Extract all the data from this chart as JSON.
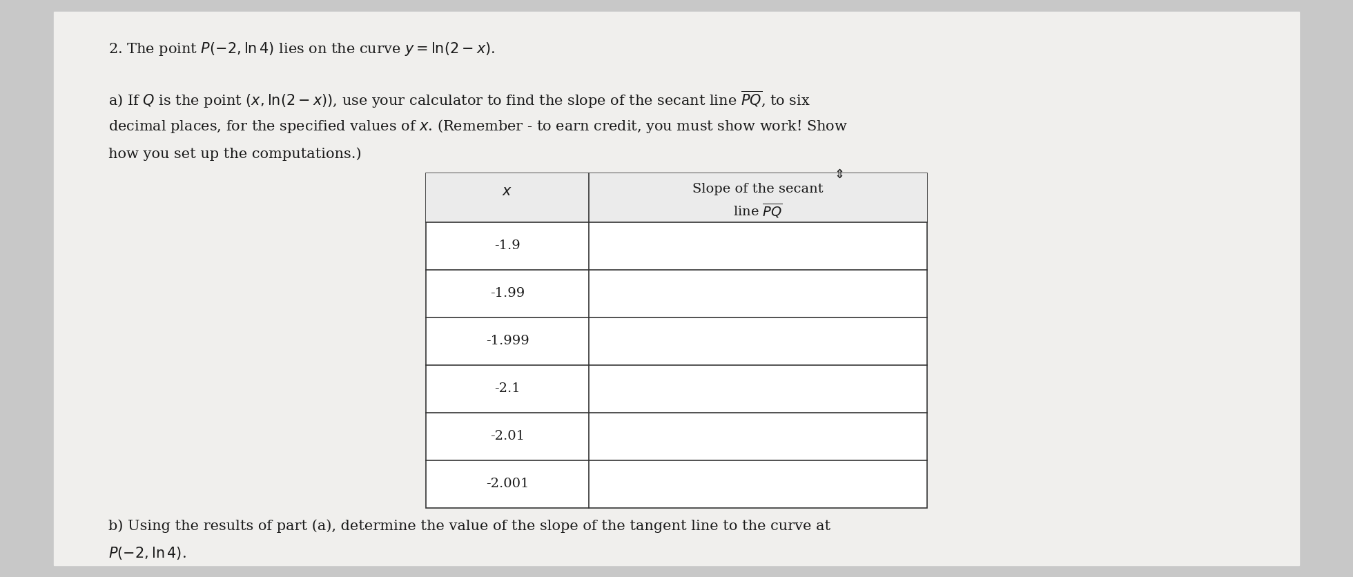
{
  "background_color": "#c8c8c8",
  "paper_color": "#f0efed",
  "title_line": "2. The point $P(-2, \\ln 4)$ lies on the curve $y = \\ln(2-x)$.",
  "part_a_line1": "a) If $Q$ is the point $(x, \\ln(2-x))$, use your calculator to find the slope of the secant line $\\overline{PQ}$, to six",
  "part_a_line2": "decimal places, for the specified values of $x$. (Remember - to earn credit, you must show work! Show",
  "part_a_line3": "how you set up the computations.)",
  "col1_header": "$x$",
  "col2_header": "Slope of the secant\nline $\\overline{PQ}$",
  "x_values": [
    "-1.9",
    "-1.99",
    "-1.999",
    "-2.1",
    "-2.01",
    "-2.001"
  ],
  "slope_values": [
    "",
    "",
    "",
    "",
    "",
    ""
  ],
  "part_b": "b) Using the results of part (a), determine the value of the slope of the tangent line to the curve at\n$P(-2, \\ln 4)$.",
  "text_color": "#1a1a1a",
  "table_bg": "#f5f5f0",
  "table_border": "#333333",
  "font_size_main": 15,
  "font_size_table": 14
}
